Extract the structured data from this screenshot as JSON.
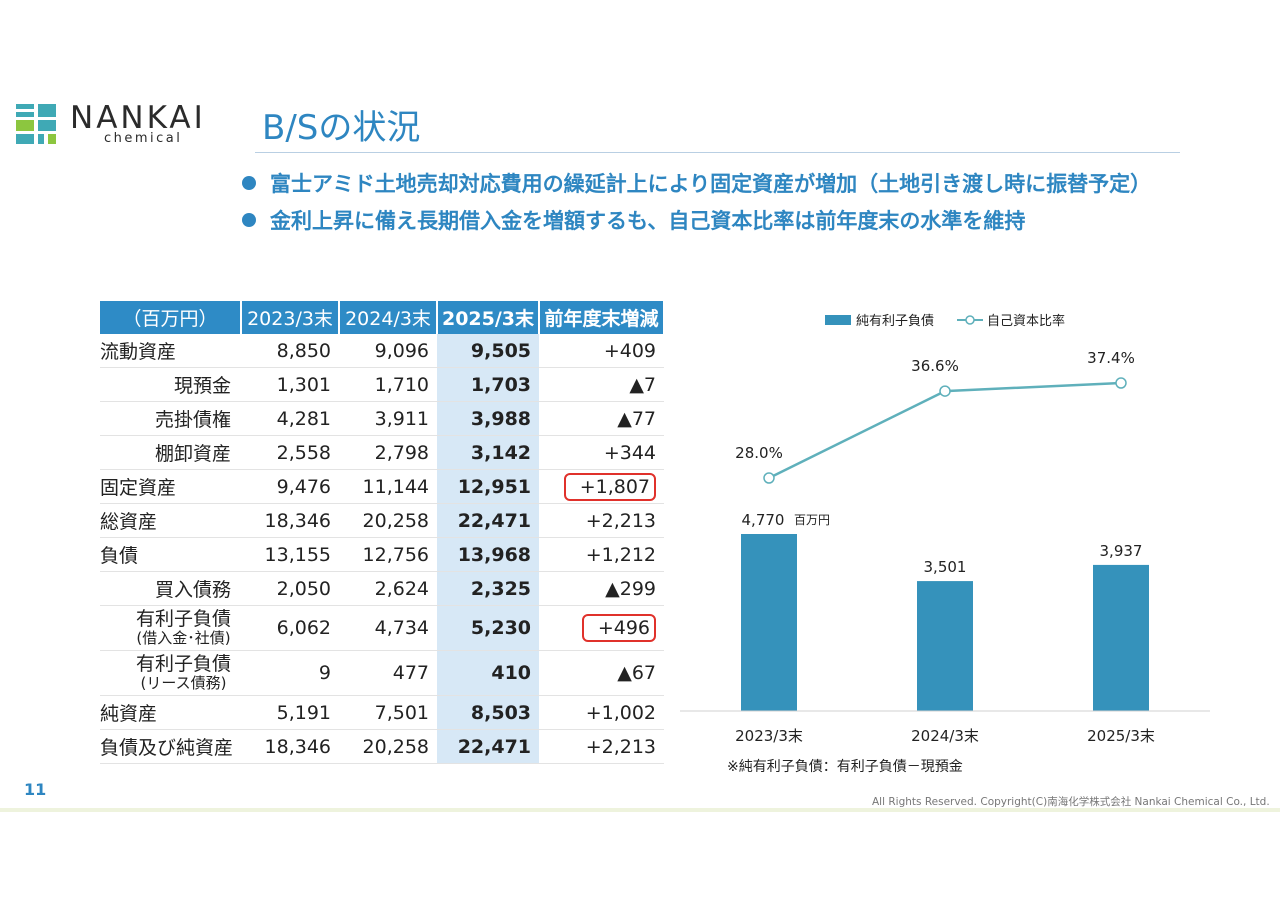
{
  "brand": {
    "name": "NANKAI",
    "sub": "chemical",
    "colors": {
      "teal": "#3fa9b5",
      "green": "#8cc63f",
      "blue": "#2e86c1"
    }
  },
  "page": {
    "title": "B/Sの状況",
    "number": "11",
    "copyright": "All Rights Reserved. Copyright(C)南海化学株式会社 Nankai Chemical Co., Ltd."
  },
  "bullets": [
    "富士アミド土地売却対応費用の繰延計上により固定資産が増加（土地引き渡し時に振替予定）",
    "金利上昇に備え長期借入金を増額するも、自己資本比率は前年度末の水準を維持"
  ],
  "table": {
    "headers": [
      "（百万円）",
      "2023/3末",
      "2024/3末",
      "2025/3末",
      "前年度末増減"
    ],
    "rows": [
      {
        "label": "流動資産",
        "v1": "8,850",
        "v2": "9,096",
        "v3": "9,505",
        "diff": "+409"
      },
      {
        "label": "現預金",
        "v1": "1,301",
        "v2": "1,710",
        "v3": "1,703",
        "diff": "▲7"
      },
      {
        "label": "売掛債権",
        "v1": "4,281",
        "v2": "3,911",
        "v3": "3,988",
        "diff": "▲77"
      },
      {
        "label": "棚卸資産",
        "v1": "2,558",
        "v2": "2,798",
        "v3": "3,142",
        "diff": "+344"
      },
      {
        "label": "固定資産",
        "v1": "9,476",
        "v2": "11,144",
        "v3": "12,951",
        "diff": "+1,807"
      },
      {
        "label": "総資産",
        "v1": "18,346",
        "v2": "20,258",
        "v3": "22,471",
        "diff": "+2,213"
      },
      {
        "label": "負債",
        "v1": "13,155",
        "v2": "12,756",
        "v3": "13,968",
        "diff": "+1,212"
      },
      {
        "label": "買入債務",
        "v1": "2,050",
        "v2": "2,624",
        "v3": "2,325",
        "diff": "▲299"
      },
      {
        "label": "有利子負債",
        "sublabel": "(借入金･社債)",
        "v1": "6,062",
        "v2": "4,734",
        "v3": "5,230",
        "diff": "+496"
      },
      {
        "label": "有利子負債",
        "sublabel": "(リース債務)",
        "v1": "9",
        "v2": "477",
        "v3": "410",
        "diff": "▲67"
      },
      {
        "label": "純資産",
        "v1": "5,191",
        "v2": "7,501",
        "v3": "8,503",
        "diff": "+1,002"
      },
      {
        "label": "負債及び純資産",
        "v1": "18,346",
        "v2": "20,258",
        "v3": "22,471",
        "diff": "+2,213"
      }
    ]
  },
  "chart_data": {
    "type": "bar",
    "categories": [
      "2023/3末",
      "2024/3末",
      "2025/3末"
    ],
    "series": [
      {
        "name": "純有利子負債",
        "type": "bar",
        "values": [
          4770,
          3501,
          3937
        ],
        "labels": [
          "4,770",
          "3,501",
          "3,937"
        ],
        "color": "#3592bb"
      },
      {
        "name": "自己資本比率",
        "type": "line",
        "values": [
          28.0,
          36.6,
          37.4
        ],
        "labels": [
          "28.0%",
          "36.6%",
          "37.4%"
        ],
        "color": "#5fb0bb"
      }
    ],
    "unit_label": "百万円",
    "legend": "top",
    "footnote": "※純有利子負債：有利子負債－現預金"
  }
}
